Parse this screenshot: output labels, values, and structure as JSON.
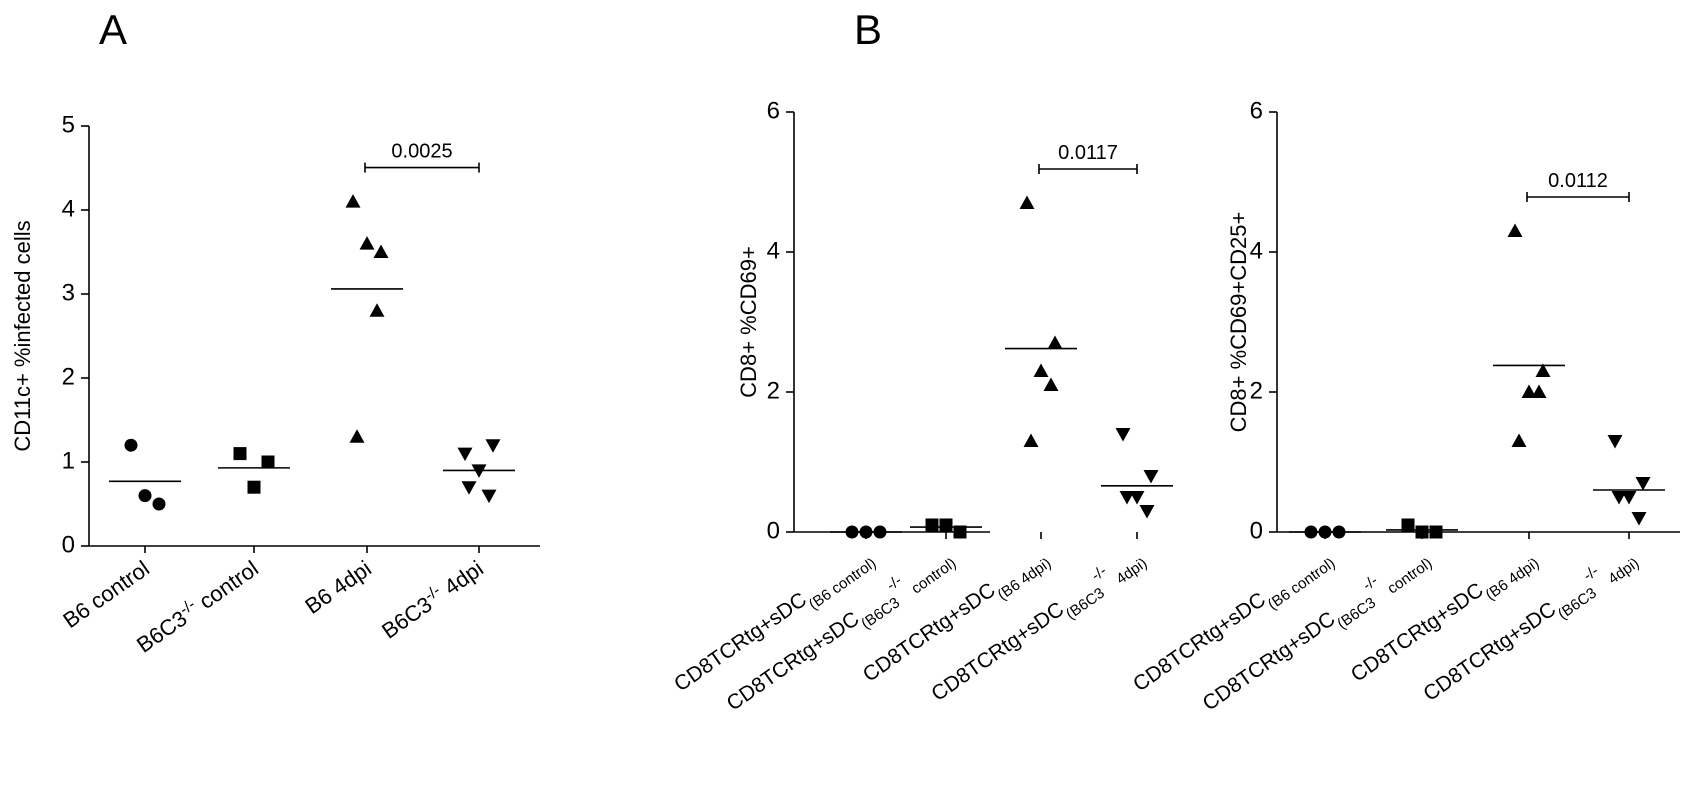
{
  "chart_data": [
    {
      "type": "dot",
      "panel_label": "A",
      "y_label": "CD11c+  %infected cells",
      "categories": [
        [
          {
            "text": "B6 control",
            "pos": "normal"
          }
        ],
        [
          {
            "text": "B6C3",
            "pos": "normal"
          },
          {
            "text": "-/-",
            "pos": "sup"
          },
          {
            "text": " control",
            "pos": "normal"
          }
        ],
        [
          {
            "text": "B6 4dpi",
            "pos": "normal"
          }
        ],
        [
          {
            "text": "B6C3",
            "pos": "normal"
          },
          {
            "text": "-/-",
            "pos": "sup"
          },
          {
            "text": " 4dpi",
            "pos": "normal"
          }
        ]
      ],
      "markers": [
        "circle",
        "square",
        "triangle-up",
        "triangle-down"
      ],
      "color": "#000000",
      "values": [
        [
          1.2,
          0.5,
          0.6
        ],
        [
          1.1,
          1.0,
          0.7
        ],
        [
          4.1,
          3.5,
          3.6,
          2.8,
          1.3
        ],
        [
          1.1,
          1.2,
          0.9,
          0.6,
          0.7
        ]
      ],
      "means": [
        0.77,
        0.93,
        3.06,
        0.9
      ],
      "annotations": [
        {
          "text": "0.0025",
          "groups": [
            2,
            3
          ]
        }
      ],
      "ylim": [
        0,
        5
      ],
      "yticks": [
        0,
        1,
        2,
        3,
        4,
        5
      ]
    },
    {
      "type": "dot",
      "panel_label": "B",
      "y_label": "CD8+ %CD69+",
      "categories": [
        [
          {
            "text": "CD8TCRtg+sDC",
            "pos": "normal"
          },
          {
            "text": "(B6 control)",
            "pos": "sub"
          }
        ],
        [
          {
            "text": "CD8TCRtg+sDC",
            "pos": "normal"
          },
          {
            "text": "(B6C3",
            "pos": "sub"
          },
          {
            "text": "-/-",
            "pos": "sup"
          },
          {
            "text": " control)",
            "pos": "sub"
          }
        ],
        [
          {
            "text": "CD8TCRtg+sDC",
            "pos": "normal"
          },
          {
            "text": "(B6 4dpi)",
            "pos": "sub"
          }
        ],
        [
          {
            "text": "CD8TCRtg+sDC",
            "pos": "normal"
          },
          {
            "text": "(B6C3",
            "pos": "sub"
          },
          {
            "text": "-/-",
            "pos": "sup"
          },
          {
            "text": " 4dpi)",
            "pos": "sub"
          }
        ]
      ],
      "markers": [
        "circle",
        "square",
        "triangle-up",
        "triangle-down"
      ],
      "color": "#000000",
      "values": [
        [
          0,
          0,
          0
        ],
        [
          0.1,
          0,
          0.1
        ],
        [
          4.7,
          2.7,
          2.3,
          2.1,
          1.3
        ],
        [
          1.4,
          0.8,
          0.5,
          0.3,
          0.5
        ]
      ],
      "means": [
        0,
        0.07,
        2.62,
        0.66
      ],
      "annotations": [
        {
          "text": "0.0117",
          "groups": [
            2,
            3
          ]
        }
      ],
      "ylim": [
        0,
        6
      ],
      "yticks": [
        0,
        2,
        4,
        6
      ]
    },
    {
      "type": "dot",
      "y_label": "CD8+ %CD69+CD25+",
      "categories": [
        [
          {
            "text": "CD8TCRtg+sDC",
            "pos": "normal"
          },
          {
            "text": "(B6 control)",
            "pos": "sub"
          }
        ],
        [
          {
            "text": "CD8TCRtg+sDC",
            "pos": "normal"
          },
          {
            "text": "(B6C3",
            "pos": "sub"
          },
          {
            "text": "-/-",
            "pos": "sup"
          },
          {
            "text": " control)",
            "pos": "sub"
          }
        ],
        [
          {
            "text": "CD8TCRtg+sDC",
            "pos": "normal"
          },
          {
            "text": "(B6 4dpi)",
            "pos": "sub"
          }
        ],
        [
          {
            "text": "CD8TCRtg+sDC",
            "pos": "normal"
          },
          {
            "text": "(B6C3",
            "pos": "sub"
          },
          {
            "text": "-/-",
            "pos": "sup"
          },
          {
            "text": " 4dpi)",
            "pos": "sub"
          }
        ]
      ],
      "markers": [
        "circle",
        "square",
        "triangle-up",
        "triangle-down"
      ],
      "color": "#000000",
      "values": [
        [
          0,
          0,
          0
        ],
        [
          0.1,
          0,
          0
        ],
        [
          4.3,
          2.3,
          2.0,
          2.0,
          1.3
        ],
        [
          1.3,
          0.7,
          0.5,
          0.2,
          0.5
        ]
      ],
      "means": [
        0,
        0.03,
        2.38,
        0.6
      ],
      "annotations": [
        {
          "text": "0.0112",
          "groups": [
            2,
            3
          ]
        }
      ],
      "ylim": [
        0,
        6
      ],
      "yticks": [
        0,
        2,
        4,
        6
      ]
    }
  ]
}
